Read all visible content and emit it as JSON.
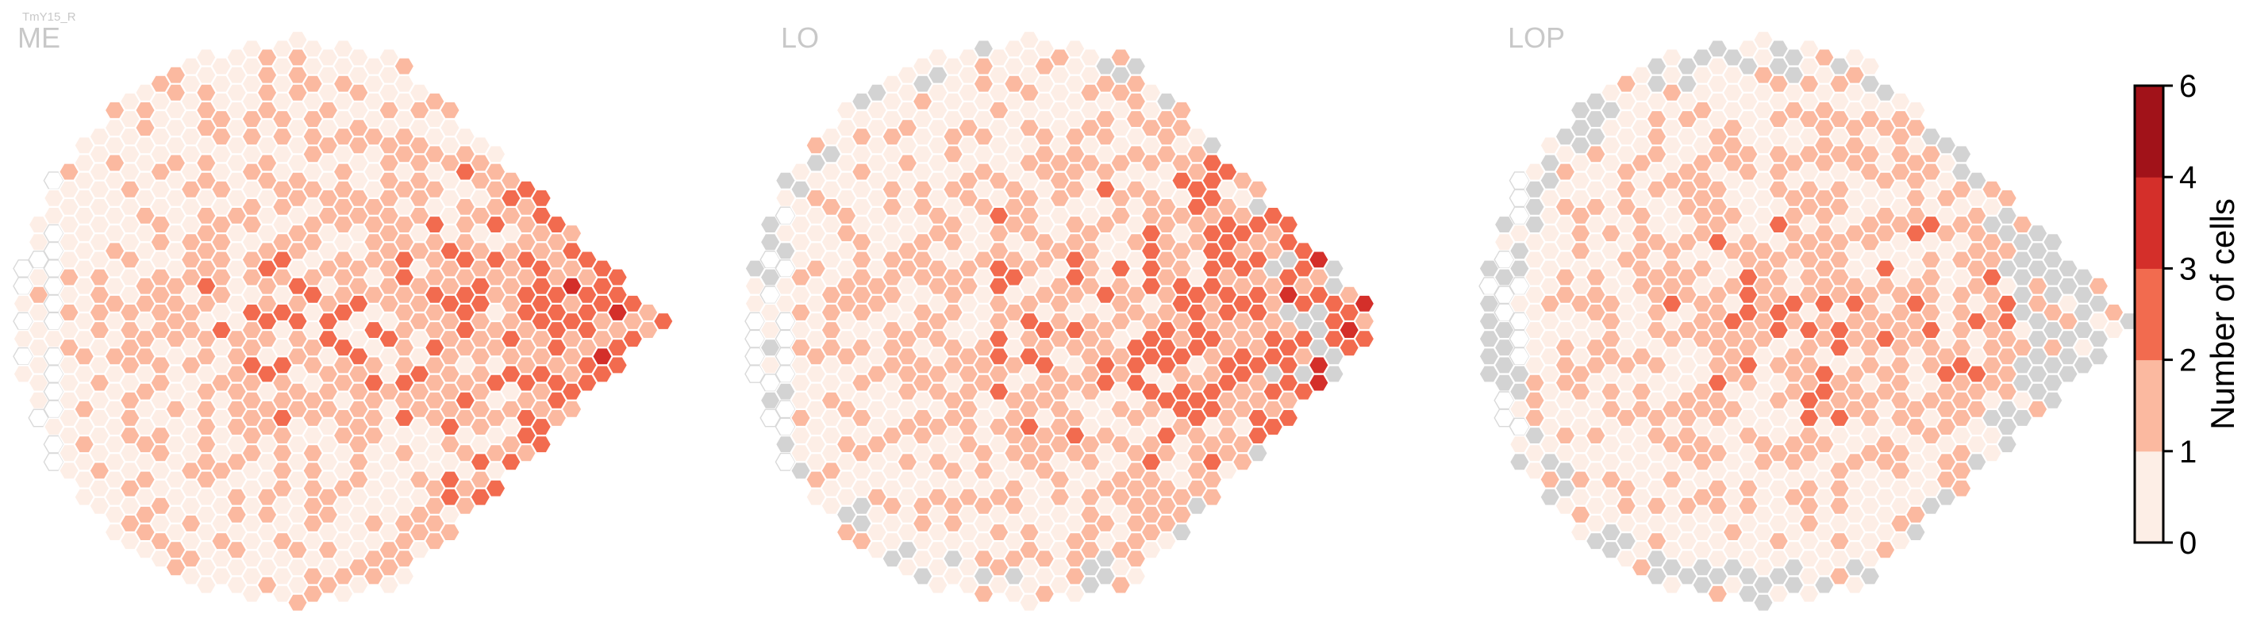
{
  "figure": {
    "cell_type_label": "TmY15_R",
    "colors": {
      "scale": [
        "#fdeee6",
        "#fbb9a0",
        "#f26b4f",
        "#d42f2a",
        "#a11219"
      ],
      "missing": "#d3d3d3",
      "empty_outline": "#d9d9d9",
      "title_text": "#c8c8c8"
    },
    "colorbar": {
      "label": "Number of cells",
      "ticks": [
        "0",
        "1",
        "2",
        "3",
        "4",
        "6"
      ]
    }
  },
  "chart_data": [
    {
      "type": "heatmap",
      "title": "ME",
      "layout": "hexagonal columns",
      "value_bins": [
        [
          0,
          1
        ],
        [
          1,
          2
        ],
        [
          2,
          3
        ],
        [
          3,
          4
        ],
        [
          4,
          6
        ]
      ],
      "distribution": "counts mostly 0–2 on the left half, 2–3 in the center, 4–6 along the right edge"
    },
    {
      "type": "heatmap",
      "title": "LO",
      "layout": "hexagonal columns",
      "value_bins": [
        [
          0,
          1
        ],
        [
          1,
          2
        ],
        [
          2,
          3
        ],
        [
          3,
          4
        ],
        [
          4,
          6
        ]
      ],
      "distribution": "counts 1–3 across the center, 4–6 in a band along the right and lower-right edge, some columns without data (grey) on the border"
    },
    {
      "type": "heatmap",
      "title": "LOP",
      "layout": "hexagonal columns",
      "value_bins": [
        [
          0,
          1
        ],
        [
          1,
          2
        ],
        [
          2,
          3
        ],
        [
          3,
          4
        ],
        [
          4,
          6
        ]
      ],
      "distribution": "counts mostly 0–2, 4–6 along the right edge, many columns without data (grey) on the outer border"
    }
  ]
}
